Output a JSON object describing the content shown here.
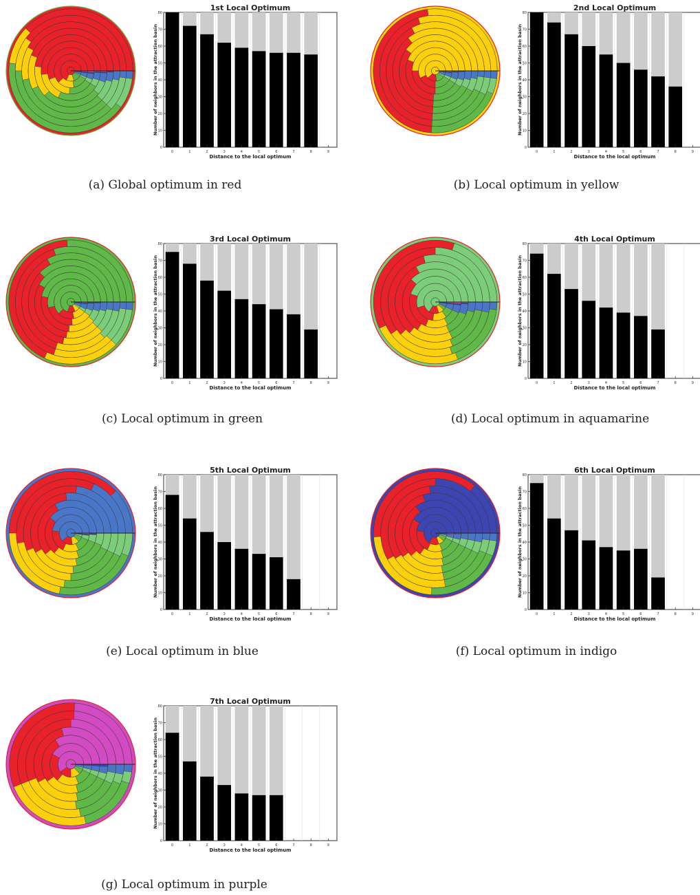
{
  "colors": {
    "red": "#e8212b",
    "yellow": "#fcd00d",
    "green": "#5fb847",
    "aquamarine": "#7ccd7a",
    "blue": "#4a76c8",
    "indigo": "#3d45b0",
    "purple": "#d24bc2",
    "bar_fill": "#000000",
    "bar_background": "#cccccc"
  },
  "chart_common": {
    "xlabel": "Distance to the local optimum",
    "ylabel": "Number of neighbors in the attraction basin",
    "x_ticks": [
      "0",
      "1",
      "2",
      "3",
      "4",
      "5",
      "6",
      "7",
      "8",
      "9"
    ],
    "y_ticks": [
      "0",
      "10",
      "20",
      "30",
      "40",
      "50",
      "60",
      "70",
      "80"
    ],
    "ylim": [
      0,
      80
    ]
  },
  "panels": [
    {
      "caption": "(a)  Global optimum in red"
    },
    {
      "caption": "(b)  Local optimum in yellow"
    },
    {
      "caption": "(c)  Local optimum in green"
    },
    {
      "caption": "(d)  Local optimum in aquamarine"
    },
    {
      "caption": "(e)  Local optimum in blue"
    },
    {
      "caption": "(f)  Local optimum in indigo"
    },
    {
      "caption": "(g)  Local optimum in purple"
    }
  ],
  "chart_data": [
    {
      "type": "bar",
      "title": "1st Local Optimum",
      "categories": [
        "0",
        "1",
        "2",
        "3",
        "4",
        "5",
        "6",
        "7",
        "8",
        "9"
      ],
      "values": [
        80,
        72,
        67,
        62,
        59,
        57,
        56,
        56,
        55,
        null
      ],
      "background_values": [
        80,
        80,
        80,
        80,
        80,
        80,
        80,
        80,
        80,
        null
      ],
      "xlabel": "Distance to the local optimum",
      "ylabel": "Number of neighbors in the attraction basin",
      "ylim": [
        0,
        80
      ]
    },
    {
      "type": "bar",
      "title": "2nd Local Optimum",
      "categories": [
        "0",
        "1",
        "2",
        "3",
        "4",
        "5",
        "6",
        "7",
        "8",
        "9"
      ],
      "values": [
        80,
        74,
        67,
        60,
        55,
        50,
        46,
        42,
        36,
        null
      ],
      "background_values": [
        80,
        80,
        80,
        80,
        80,
        80,
        80,
        80,
        80,
        null
      ],
      "xlabel": "Distance to the local optimum",
      "ylabel": "Number of neighbors in the attraction basin",
      "ylim": [
        0,
        80
      ]
    },
    {
      "type": "bar",
      "title": "3rd Local Optimum",
      "categories": [
        "0",
        "1",
        "2",
        "3",
        "4",
        "5",
        "6",
        "7",
        "8",
        "9"
      ],
      "values": [
        75,
        68,
        58,
        52,
        47,
        44,
        41,
        38,
        29,
        null
      ],
      "background_values": [
        80,
        80,
        80,
        80,
        80,
        80,
        80,
        80,
        80,
        null
      ],
      "xlabel": "Distance to the local optimum",
      "ylabel": "Number of neighbors in the attraction basin",
      "ylim": [
        0,
        80
      ]
    },
    {
      "type": "bar",
      "title": "4th Local Optimum",
      "categories": [
        "0",
        "1",
        "2",
        "3",
        "4",
        "5",
        "6",
        "7",
        "8",
        "9"
      ],
      "values": [
        74,
        62,
        53,
        46,
        42,
        39,
        37,
        29,
        null,
        null
      ],
      "background_values": [
        80,
        80,
        80,
        80,
        80,
        80,
        80,
        80,
        null,
        null
      ],
      "xlabel": "Distance to the local optimum",
      "ylabel": "Number of neighbors in the attraction basin",
      "ylim": [
        0,
        80
      ]
    },
    {
      "type": "bar",
      "title": "5th Local Optimum",
      "categories": [
        "0",
        "1",
        "2",
        "3",
        "4",
        "5",
        "6",
        "7",
        "8",
        "9"
      ],
      "values": [
        68,
        54,
        46,
        40,
        36,
        33,
        31,
        18,
        null,
        null
      ],
      "background_values": [
        80,
        80,
        80,
        80,
        80,
        80,
        80,
        80,
        null,
        null
      ],
      "xlabel": "Distance to the local optimum",
      "ylabel": "Number of neighbors in the attraction basin",
      "ylim": [
        0,
        80
      ]
    },
    {
      "type": "bar",
      "title": "6th Local Optimum",
      "categories": [
        "0",
        "1",
        "2",
        "3",
        "4",
        "5",
        "6",
        "7",
        "8",
        "9"
      ],
      "values": [
        75,
        54,
        47,
        41,
        37,
        35,
        36,
        19,
        null,
        null
      ],
      "background_values": [
        80,
        80,
        80,
        80,
        80,
        80,
        80,
        80,
        null,
        null
      ],
      "xlabel": "Distance to the local optimum",
      "ylabel": "Number of neighbors in the attraction basin",
      "ylim": [
        0,
        80
      ]
    },
    {
      "type": "bar",
      "title": "7th Local Optimum",
      "categories": [
        "0",
        "1",
        "2",
        "3",
        "4",
        "5",
        "6",
        "7",
        "8",
        "9"
      ],
      "values": [
        64,
        47,
        38,
        33,
        28,
        27,
        27,
        null,
        null,
        null
      ],
      "background_values": [
        80,
        80,
        80,
        80,
        80,
        80,
        80,
        null,
        null,
        null
      ],
      "xlabel": "Distance to the local optimum",
      "ylabel": "Number of neighbors in the attraction basin",
      "ylim": [
        0,
        80
      ]
    }
  ],
  "radial_data": [
    {
      "highlight": "red",
      "rings": [
        [
          "red:0.68",
          "yellow:0.12",
          "green:0.12",
          "aquamarine:0.02",
          "blue:0.04",
          "indigo:0.01",
          "purple:0.01"
        ],
        [
          "red:0.62",
          "yellow:0.16",
          "green:0.14",
          "aquamarine:0.02",
          "blue:0.04",
          "indigo:0.01",
          "purple:0.01"
        ],
        [
          "red:0.56",
          "yellow:0.18",
          "green:0.17",
          "aquamarine:0.03",
          "blue:0.04",
          "indigo:0.01",
          "purple:0.01"
        ],
        [
          "red:0.52",
          "yellow:0.16",
          "green:0.23",
          "aquamarine:0.04",
          "blue:0.04",
          "indigo:0.005",
          "purple:0.005"
        ],
        [
          "red:0.48",
          "yellow:0.14",
          "green:0.27",
          "aquamarine:0.06",
          "blue:0.04",
          "indigo:0.005",
          "purple:0.005"
        ],
        [
          "red:0.44",
          "yellow:0.13",
          "green:0.31",
          "aquamarine:0.08",
          "blue:0.035",
          "indigo:0.0025",
          "purple:0.0025"
        ],
        [
          "red:0.42",
          "yellow:0.11",
          "green:0.35",
          "aquamarine:0.09",
          "blue:0.03"
        ],
        [
          "red:0.40",
          "yellow:0.10",
          "green:0.38",
          "aquamarine:0.10",
          "blue:0.02"
        ],
        [
          "red:0.38",
          "yellow:0.10",
          "green:0.42",
          "aquamarine:0.08",
          "blue:0.02"
        ]
      ]
    },
    {
      "highlight": "yellow",
      "rings": [
        [
          "yellow:0.62",
          "red:0.15",
          "green:0.13",
          "aquamarine:0.03",
          "blue:0.05",
          "indigo:0.01",
          "purple:0.01"
        ],
        [
          "yellow:0.57",
          "red:0.18",
          "green:0.16",
          "aquamarine:0.03",
          "blue:0.04",
          "indigo:0.01",
          "purple:0.01"
        ],
        [
          "yellow:0.50",
          "red:0.25",
          "green:0.16",
          "aquamarine:0.03",
          "blue:0.05",
          "indigo:0.005",
          "purple:0.005"
        ],
        [
          "yellow:0.44",
          "red:0.30",
          "green:0.17",
          "aquamarine:0.04",
          "blue:0.045",
          "indigo:0.0025",
          "purple:0.0025"
        ],
        [
          "yellow:0.40",
          "red:0.34",
          "green:0.18",
          "aquamarine:0.04",
          "blue:0.04"
        ],
        [
          "yellow:0.36",
          "red:0.38",
          "green:0.18",
          "aquamarine:0.05",
          "blue:0.03"
        ],
        [
          "yellow:0.33",
          "red:0.41",
          "green:0.19",
          "aquamarine:0.05",
          "blue:0.02"
        ],
        [
          "yellow:0.30",
          "red:0.44",
          "green:0.19",
          "aquamarine:0.05",
          "blue:0.02"
        ],
        [
          "yellow:0.27",
          "red:0.47",
          "green:0.20",
          "aquamarine:0.04",
          "blue:0.02"
        ]
      ]
    },
    {
      "highlight": "green",
      "rings": [
        [
          "green:0.70",
          "red:0.12",
          "yellow:0.08",
          "aquamarine:0.03",
          "blue:0.05",
          "indigo:0.01",
          "purple:0.01"
        ],
        [
          "green:0.62",
          "red:0.16",
          "yellow:0.12",
          "aquamarine:0.03",
          "blue:0.05",
          "indigo:0.01",
          "purple:0.01"
        ],
        [
          "green:0.54",
          "red:0.22",
          "yellow:0.14",
          "aquamarine:0.04",
          "blue:0.05",
          "indigo:0.005",
          "purple:0.005"
        ],
        [
          "green:0.47",
          "red:0.27",
          "yellow:0.15",
          "aquamarine:0.06",
          "blue:0.045",
          "indigo:0.0025",
          "purple:0.0025"
        ],
        [
          "green:0.42",
          "red:0.31",
          "yellow:0.15",
          "aquamarine:0.08",
          "blue:0.04"
        ],
        [
          "green:0.38",
          "red:0.34",
          "yellow:0.16",
          "aquamarine:0.09",
          "blue:0.03"
        ],
        [
          "green:0.33",
          "red:0.37",
          "yellow:0.17",
          "aquamarine:0.10",
          "blue:0.03"
        ],
        [
          "green:0.30",
          "red:0.40",
          "yellow:0.18",
          "aquamarine:0.10",
          "blue:0.02"
        ],
        [
          "green:0.26",
          "red:0.42",
          "yellow:0.20",
          "aquamarine:0.10",
          "blue:0.02"
        ]
      ]
    },
    {
      "highlight": "aquamarine",
      "rings": [
        [
          "aquamarine:0.66",
          "red:0.14",
          "yellow:0.08",
          "green:0.05",
          "blue:0.05",
          "indigo:0.01",
          "purple:0.01"
        ],
        [
          "aquamarine:0.55",
          "red:0.18",
          "yellow:0.12",
          "green:0.08",
          "blue:0.05",
          "indigo:0.01",
          "purple:0.01"
        ],
        [
          "aquamarine:0.45",
          "red:0.24",
          "yellow:0.14",
          "green:0.10",
          "blue:0.05",
          "indigo:0.01",
          "purple:0.01"
        ],
        [
          "aquamarine:0.38",
          "red:0.28",
          "yellow:0.16",
          "green:0.12",
          "blue:0.05",
          "indigo:0.005",
          "purple:0.005"
        ],
        [
          "aquamarine:0.33",
          "red:0.31",
          "yellow:0.18",
          "green:0.14",
          "blue:0.04"
        ],
        [
          "aquamarine:0.29",
          "red:0.33",
          "yellow:0.19",
          "green:0.16",
          "blue:0.03"
        ],
        [
          "aquamarine:0.25",
          "red:0.35",
          "yellow:0.20",
          "green:0.17",
          "blue:0.03"
        ],
        [
          "aquamarine:0.20",
          "red:0.37",
          "yellow:0.24",
          "green:0.17",
          "blue:0.02"
        ]
      ]
    },
    {
      "highlight": "blue",
      "rings": [
        [
          "blue:0.62",
          "red:0.15",
          "yellow:0.10",
          "green:0.08",
          "aquamarine:0.03",
          "indigo:0.01",
          "purple:0.01"
        ],
        [
          "blue:0.48",
          "red:0.20",
          "yellow:0.14",
          "green:0.12",
          "aquamarine:0.04",
          "indigo:0.01",
          "purple:0.01"
        ],
        [
          "blue:0.40",
          "red:0.24",
          "yellow:0.16",
          "green:0.14",
          "aquamarine:0.05",
          "indigo:0.005",
          "purple:0.005"
        ],
        [
          "blue:0.33",
          "red:0.28",
          "yellow:0.17",
          "green:0.16",
          "aquamarine:0.06"
        ],
        [
          "blue:0.27",
          "red:0.31",
          "yellow:0.18",
          "green:0.17",
          "aquamarine:0.07"
        ],
        [
          "blue:0.23",
          "red:0.33",
          "yellow:0.19",
          "green:0.18",
          "aquamarine:0.07"
        ],
        [
          "blue:0.18",
          "red:0.35",
          "yellow:0.20",
          "green:0.20",
          "aquamarine:0.07"
        ],
        [
          "blue:0.12",
          "red:0.38",
          "yellow:0.22",
          "green:0.22",
          "aquamarine:0.06"
        ]
      ]
    },
    {
      "highlight": "indigo",
      "rings": [
        [
          "indigo:0.66",
          "red:0.14",
          "yellow:0.08",
          "green:0.07",
          "aquamarine:0.02",
          "blue:0.02",
          "purple:0.01"
        ],
        [
          "indigo:0.48",
          "red:0.20",
          "yellow:0.13",
          "green:0.12",
          "aquamarine:0.03",
          "blue:0.03",
          "purple:0.01"
        ],
        [
          "indigo:0.41",
          "red:0.24",
          "yellow:0.15",
          "green:0.13",
          "aquamarine:0.03",
          "blue:0.035",
          "purple:0.005"
        ],
        [
          "indigo:0.35",
          "red:0.27",
          "yellow:0.17",
          "green:0.14",
          "aquamarine:0.04",
          "blue:0.03"
        ],
        [
          "indigo:0.30",
          "red:0.30",
          "yellow:0.18",
          "green:0.15",
          "aquamarine:0.04",
          "blue:0.03"
        ],
        [
          "indigo:0.27",
          "red:0.32",
          "yellow:0.19",
          "green:0.15",
          "aquamarine:0.04",
          "blue:0.03"
        ],
        [
          "indigo:0.25",
          "red:0.33",
          "yellow:0.20",
          "green:0.16",
          "aquamarine:0.04",
          "blue:0.02"
        ],
        [
          "indigo:0.14",
          "red:0.37",
          "yellow:0.23",
          "green:0.20",
          "aquamarine:0.04",
          "blue:0.02"
        ]
      ]
    },
    {
      "highlight": "purple",
      "rings": [
        [
          "purple:0.60",
          "red:0.15",
          "yellow:0.12",
          "green:0.07",
          "aquamarine:0.02",
          "blue:0.03",
          "indigo:0.01"
        ],
        [
          "purple:0.42",
          "red:0.22",
          "yellow:0.17",
          "green:0.12",
          "aquamarine:0.03",
          "blue:0.03",
          "indigo:0.01"
        ],
        [
          "purple:0.34",
          "red:0.26",
          "yellow:0.19",
          "green:0.14",
          "aquamarine:0.03",
          "blue:0.03",
          "indigo:0.01"
        ],
        [
          "purple:0.29",
          "red:0.29",
          "yellow:0.20",
          "green:0.15",
          "aquamarine:0.03",
          "blue:0.03",
          "indigo:0.01"
        ],
        [
          "purple:0.25",
          "red:0.31",
          "yellow:0.21",
          "green:0.16",
          "aquamarine:0.04",
          "blue:0.03"
        ],
        [
          "purple:0.24",
          "red:0.32",
          "yellow:0.22",
          "green:0.16",
          "aquamarine:0.03",
          "blue:0.03"
        ],
        [
          "purple:0.24",
          "red:0.32",
          "yellow:0.23",
          "green:0.16",
          "aquamarine:0.03",
          "blue:0.02"
        ]
      ]
    }
  ]
}
